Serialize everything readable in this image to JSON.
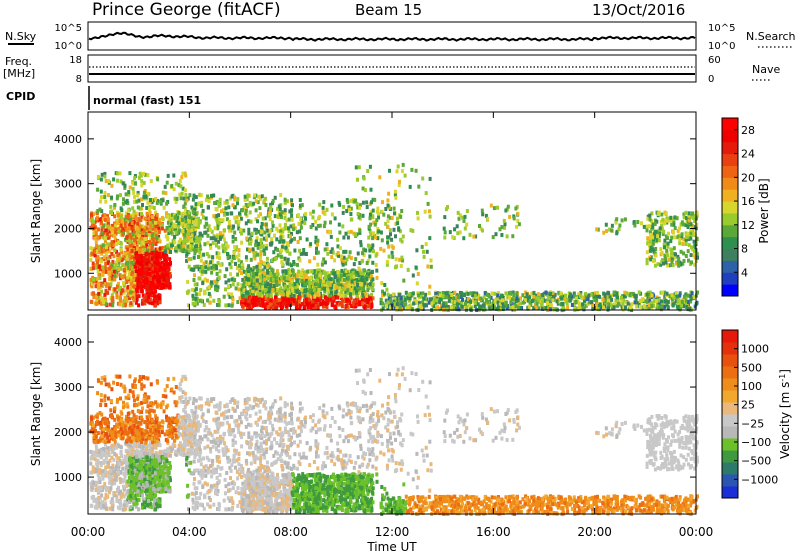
{
  "header": {
    "station": "Prince George (fitACF)",
    "beam": "Beam 15",
    "date": "13/Oct/2016"
  },
  "top_panels": {
    "nsky_label": "N.Sky",
    "nsearch_label": "N.Search",
    "nsky_ticks": [
      "10^5",
      "10^0"
    ],
    "nsearch_ticks": [
      "10^5",
      "10^0"
    ],
    "freq_label": "Freq.",
    "freq_unit": "[MHz]",
    "freq_ticks": [
      "18",
      "8"
    ],
    "nave_label": "Nave",
    "nave_ticks": [
      "60",
      "0"
    ],
    "cpid_label": "CPID",
    "cpid_text": "normal (fast) 151"
  },
  "x_axis": {
    "label": "Time UT",
    "ticks": [
      "00:00",
      "04:00",
      "08:00",
      "12:00",
      "16:00",
      "20:00",
      "00:00"
    ]
  },
  "chart_data": [
    {
      "type": "heatmap",
      "name": "power",
      "ylabel": "Slant Range [km]",
      "yticks": [
        "1000",
        "2000",
        "3000",
        "4000"
      ],
      "ylim": [
        180,
        4600
      ],
      "xlim_hours": [
        0,
        24
      ],
      "colorbar": {
        "label": "Power [dB]",
        "ticks": [
          "4",
          "8",
          "12",
          "16",
          "20",
          "24",
          "28"
        ],
        "range": [
          0,
          30
        ],
        "colors": [
          "#0000ff",
          "#1f3fbf",
          "#2e62a8",
          "#3d7f5f",
          "#2e8f4f",
          "#5aa838",
          "#9acb2d",
          "#d6d62d",
          "#f0b020",
          "#f08a18",
          "#ee6414",
          "#e84010",
          "#e51a0a",
          "#ee0000",
          "#ff0000"
        ]
      }
    },
    {
      "type": "heatmap",
      "name": "velocity",
      "ylabel": "Slant Range [km]",
      "yticks": [
        "1000",
        "2000",
        "3000",
        "4000"
      ],
      "ylim": [
        180,
        4600
      ],
      "xlim_hours": [
        0,
        24
      ],
      "colorbar": {
        "label": "Velocity [m s",
        "label_sup": "-1",
        "label_end": "]",
        "ticks": [
          "1000",
          "500",
          "100",
          "25",
          "-25",
          "-100",
          "-500",
          "-1000"
        ],
        "colors": [
          "#1a2fd6",
          "#2a55b0",
          "#2e7a6a",
          "#3f9a3f",
          "#6cc12a",
          "#b8b8b8",
          "#c8c8c8",
          "#e9b87a",
          "#f2a82e",
          "#ef8d1a",
          "#ec6e12",
          "#e8500e",
          "#e5300a",
          "#e51a0a"
        ]
      }
    }
  ]
}
